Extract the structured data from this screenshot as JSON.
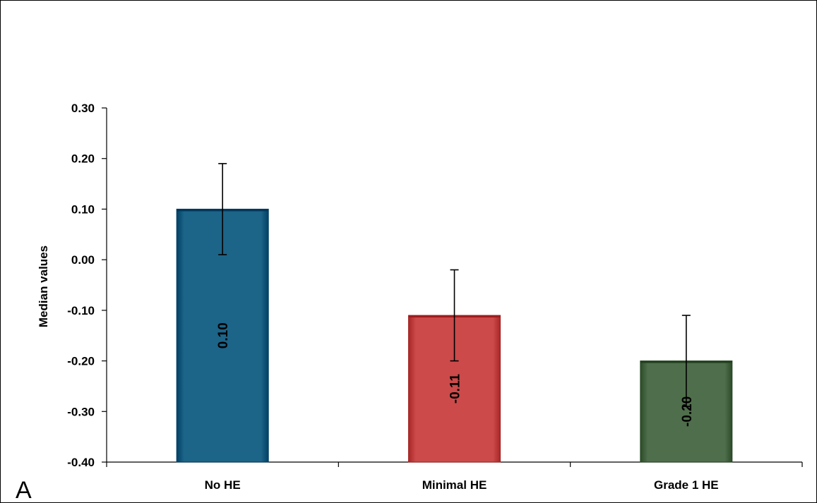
{
  "chart_data": {
    "type": "bar",
    "categories": [
      "No HE",
      "Minimal HE",
      "Grade 1 HE"
    ],
    "values": [
      0.1,
      -0.11,
      -0.2
    ],
    "data_labels": [
      "0.10",
      "-0.11",
      "-0.20"
    ],
    "error_bars": {
      "upper": [
        0.19,
        -0.02,
        -0.11
      ],
      "lower": [
        0.01,
        -0.2,
        -0.29
      ]
    },
    "bar_colors": [
      "#1c6488",
      "#cc4a4a",
      "#4f6e4b"
    ],
    "title": "",
    "xlabel": "",
    "ylabel": "Median values",
    "ylim": [
      -0.4,
      0.3
    ],
    "yticks": [
      0.3,
      0.2,
      0.1,
      0.0,
      -0.1,
      -0.2,
      -0.3,
      -0.4
    ],
    "ytick_labels": [
      "0.30",
      "0.20",
      "0.10",
      "0.00",
      "-0.10",
      "-0.20",
      "-0.30",
      "-0.40"
    ],
    "grid": false,
    "legend": "none",
    "data_label_orientation": "vertical"
  },
  "panel_label": "A"
}
